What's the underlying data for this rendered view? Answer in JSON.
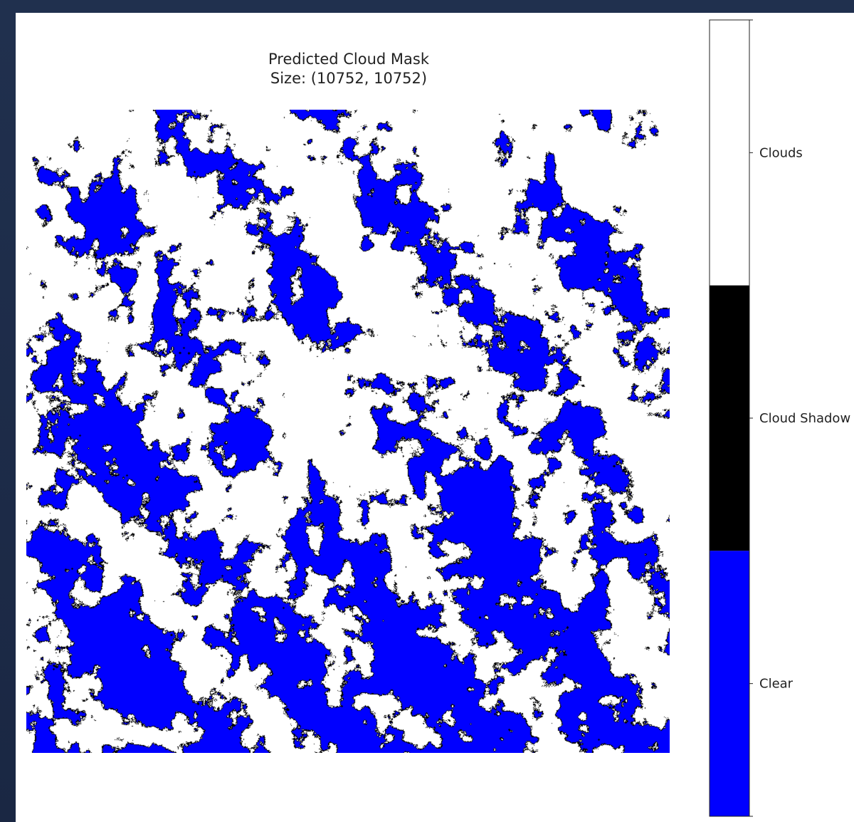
{
  "chart_data": {
    "type": "heatmap",
    "title": "Predicted Cloud Mask",
    "subtitle": "Size: (10752, 10752)",
    "colorbar": {
      "categories": [
        {
          "label": "Clear",
          "value": 0,
          "color": "#0000ff"
        },
        {
          "label": "Cloud Shadow",
          "value": 1,
          "color": "#000000"
        },
        {
          "label": "Clouds",
          "value": 2,
          "color": "#ffffff"
        }
      ]
    },
    "grid": false,
    "axes_visible": false,
    "legend_placement": "right"
  }
}
